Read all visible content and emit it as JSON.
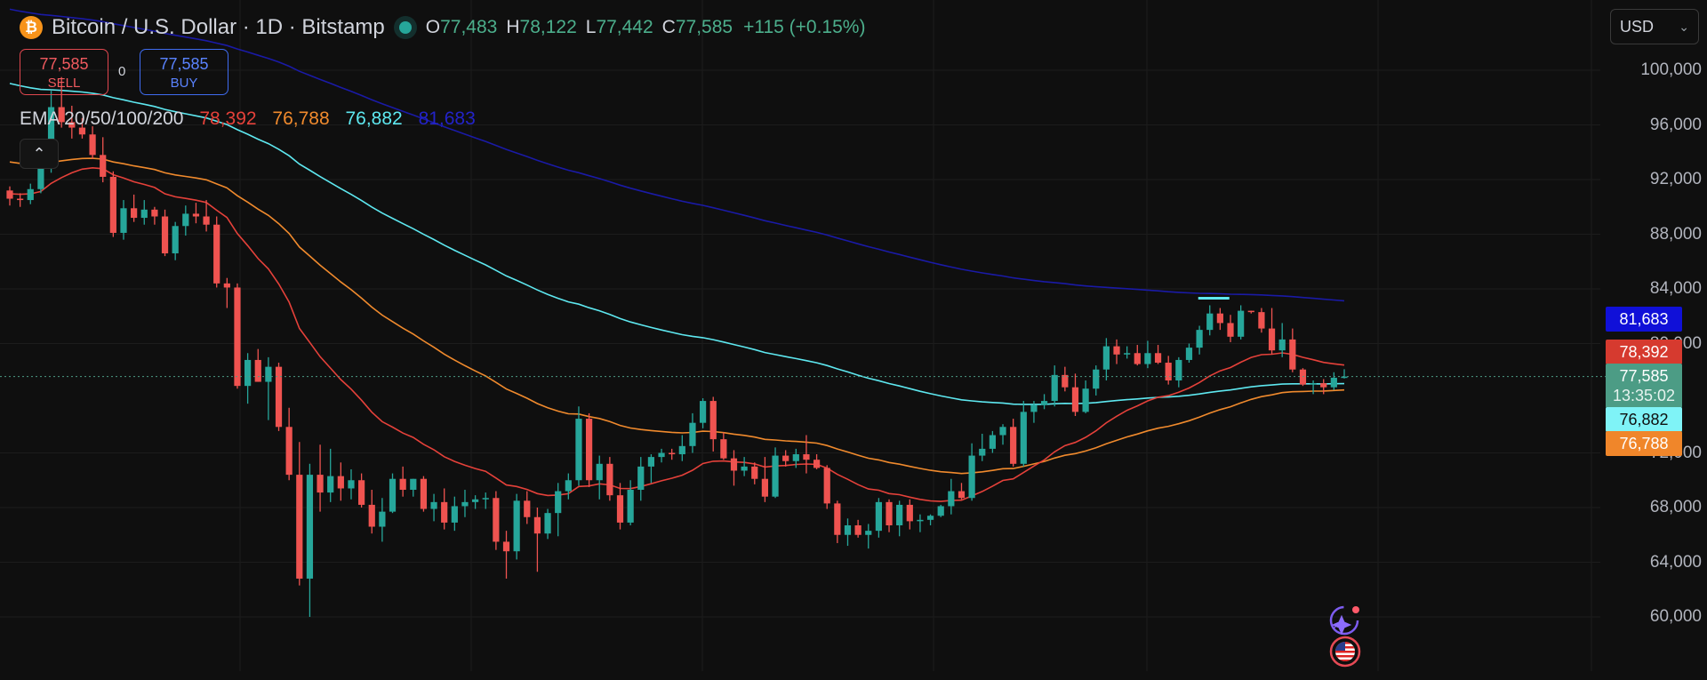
{
  "header": {
    "coin_symbol": "₿",
    "title": "Bitcoin / U.S. Dollar · 1D · Bitstamp",
    "ohlc": {
      "o_label": "O",
      "o": "77,483",
      "h_label": "H",
      "h": "78,122",
      "l_label": "L",
      "l": "77,442",
      "c_label": "C",
      "c": "77,585",
      "change": "+115 (+0.15%)"
    }
  },
  "trade": {
    "sell_price": "77,585",
    "sell_label": "SELL",
    "spread": "0",
    "buy_price": "77,585",
    "buy_label": "BUY"
  },
  "ema": {
    "label": "EMA 20/50/100/200",
    "v20": "78,392",
    "v50": "76,788",
    "v100": "76,882",
    "v200": "81,683",
    "colors": {
      "ema20": "#e5413a",
      "ema50": "#f08a2d",
      "ema100": "#5ee8f0",
      "ema200": "#1a1aa6"
    }
  },
  "currency_selector": {
    "value": "USD"
  },
  "price_scale": {
    "labels": [
      "100,000",
      "96,000",
      "92,000",
      "88,000",
      "84,000",
      "80,000",
      "72,000",
      "68,000",
      "64,000",
      "60,000"
    ],
    "tags": {
      "ema200": "81,683",
      "ema20": "78,392",
      "current": "77,585",
      "countdown": "13:35:02",
      "ema100": "76,882",
      "ema50": "76,788"
    }
  },
  "icons": {
    "collapse": "chevron-up-icon",
    "ai": "sparkle-icon",
    "flag": "us-flag-icon",
    "currency": "chevron-down-icon"
  },
  "colors": {
    "up": "#26a69a",
    "down": "#ef5350",
    "background": "#0f0f0f",
    "current_tag": "#4c9c85"
  },
  "chart_data": {
    "type": "candlestick",
    "title": "Bitcoin / U.S. Dollar · 1D · Bitstamp",
    "xlabel": "",
    "ylabel": "",
    "ylim": [
      57000,
      102000
    ],
    "candles": [
      [
        91200,
        91500,
        90100,
        90600
      ],
      [
        90600,
        91000,
        90000,
        90500
      ],
      [
        90500,
        91700,
        90200,
        91300
      ],
      [
        91300,
        93000,
        91000,
        92800
      ],
      [
        92800,
        98500,
        92500,
        97300
      ],
      [
        97300,
        99500,
        95800,
        96200
      ],
      [
        96200,
        97400,
        95000,
        95800
      ],
      [
        95800,
        96500,
        95000,
        95300
      ],
      [
        95300,
        95900,
        93500,
        93800
      ],
      [
        93800,
        95100,
        91800,
        92200
      ],
      [
        92200,
        92600,
        87800,
        88100
      ],
      [
        88100,
        90500,
        87600,
        89900
      ],
      [
        89900,
        90900,
        88900,
        89200
      ],
      [
        89200,
        90500,
        88700,
        89800
      ],
      [
        89800,
        90000,
        88700,
        89300
      ],
      [
        89300,
        89800,
        86400,
        86600
      ],
      [
        86600,
        88900,
        86100,
        88600
      ],
      [
        88600,
        90100,
        87900,
        89500
      ],
      [
        89500,
        90300,
        88800,
        89300
      ],
      [
        89300,
        90500,
        88200,
        88700
      ],
      [
        88700,
        89300,
        84100,
        84400
      ],
      [
        84400,
        84800,
        82600,
        84100
      ],
      [
        84100,
        84400,
        76700,
        76900
      ],
      [
        76900,
        79300,
        75600,
        78800
      ],
      [
        78800,
        79600,
        77200,
        77200
      ],
      [
        77200,
        79000,
        74400,
        78300
      ],
      [
        78300,
        78600,
        73600,
        73900
      ],
      [
        73900,
        75300,
        70000,
        70400
      ],
      [
        70400,
        72800,
        62300,
        62800
      ],
      [
        62800,
        71200,
        60000,
        70400
      ],
      [
        70400,
        72600,
        67700,
        69100
      ],
      [
        69100,
        72300,
        68400,
        70300
      ],
      [
        70300,
        71300,
        68500,
        69400
      ],
      [
        69400,
        70800,
        68600,
        70000
      ],
      [
        70000,
        70500,
        68000,
        68200
      ],
      [
        68200,
        69300,
        66100,
        66600
      ],
      [
        66600,
        68700,
        65500,
        67700
      ],
      [
        67700,
        70500,
        67600,
        70100
      ],
      [
        70100,
        71000,
        68800,
        69300
      ],
      [
        69300,
        70100,
        68800,
        70100
      ],
      [
        70100,
        70300,
        67700,
        67900
      ],
      [
        67900,
        69000,
        67000,
        68400
      ],
      [
        68400,
        69400,
        66400,
        66900
      ],
      [
        66900,
        68800,
        66300,
        68100
      ],
      [
        68100,
        69300,
        67300,
        68400
      ],
      [
        68400,
        68900,
        67900,
        68600
      ],
      [
        68600,
        69100,
        67900,
        68700
      ],
      [
        68700,
        69200,
        64900,
        65500
      ],
      [
        65500,
        66300,
        62800,
        64800
      ],
      [
        64800,
        69000,
        64200,
        68500
      ],
      [
        68500,
        69200,
        66800,
        67300
      ],
      [
        67300,
        68000,
        63300,
        66100
      ],
      [
        66100,
        67900,
        65700,
        67600
      ],
      [
        67600,
        69800,
        65900,
        69200
      ],
      [
        69200,
        70500,
        68600,
        70000
      ],
      [
        70000,
        75400,
        69600,
        74500
      ],
      [
        74500,
        74900,
        69500,
        70000
      ],
      [
        70000,
        71800,
        68600,
        71200
      ],
      [
        71200,
        71700,
        68500,
        68900
      ],
      [
        68900,
        69800,
        66400,
        66900
      ],
      [
        66900,
        70000,
        66700,
        69300
      ],
      [
        69300,
        71700,
        68500,
        71000
      ],
      [
        71000,
        71900,
        69800,
        71700
      ],
      [
        71700,
        72300,
        71300,
        72000
      ],
      [
        72000,
        72300,
        71500,
        71900
      ],
      [
        71900,
        73300,
        71400,
        72500
      ],
      [
        72500,
        74900,
        72000,
        74200
      ],
      [
        74200,
        76000,
        73800,
        75800
      ],
      [
        75800,
        76100,
        72100,
        73000
      ],
      [
        73000,
        73500,
        71500,
        71600
      ],
      [
        71600,
        72200,
        69600,
        70700
      ],
      [
        70700,
        71700,
        70300,
        71000
      ],
      [
        71000,
        71300,
        69700,
        70100
      ],
      [
        70100,
        71700,
        68400,
        68800
      ],
      [
        68800,
        72400,
        68700,
        71800
      ],
      [
        71800,
        72200,
        71000,
        71400
      ],
      [
        71400,
        72300,
        70900,
        71900
      ],
      [
        71900,
        73300,
        70500,
        71500
      ],
      [
        71500,
        71900,
        70800,
        70900
      ],
      [
        70900,
        71100,
        67900,
        68300
      ],
      [
        68300,
        68500,
        65400,
        66000
      ],
      [
        66000,
        67200,
        65200,
        66700
      ],
      [
        66700,
        67100,
        65800,
        66000
      ],
      [
        66000,
        66800,
        65000,
        66300
      ],
      [
        66300,
        68700,
        65800,
        68400
      ],
      [
        68400,
        68600,
        66200,
        66700
      ],
      [
        66700,
        68500,
        65900,
        68200
      ],
      [
        68200,
        68600,
        66400,
        67000
      ],
      [
        67000,
        67500,
        66200,
        67100
      ],
      [
        67100,
        67500,
        66700,
        67400
      ],
      [
        67400,
        68200,
        67300,
        68100
      ],
      [
        68100,
        70100,
        67500,
        69200
      ],
      [
        69200,
        69800,
        68600,
        68700
      ],
      [
        68700,
        72700,
        68500,
        71800
      ],
      [
        71800,
        73400,
        71400,
        72300
      ],
      [
        72300,
        73600,
        72000,
        73300
      ],
      [
        73300,
        74100,
        72600,
        73900
      ],
      [
        73900,
        74500,
        71000,
        71200
      ],
      [
        71200,
        75800,
        71000,
        75000
      ],
      [
        75000,
        75800,
        74200,
        75500
      ],
      [
        75500,
        76300,
        75200,
        75800
      ],
      [
        75800,
        78400,
        75400,
        77700
      ],
      [
        77700,
        78300,
        76500,
        76800
      ],
      [
        76800,
        77800,
        74700,
        75000
      ],
      [
        75000,
        77300,
        74900,
        76700
      ],
      [
        76700,
        78400,
        76200,
        78100
      ],
      [
        78100,
        80400,
        77300,
        79800
      ],
      [
        79800,
        80300,
        78500,
        79200
      ],
      [
        79200,
        79800,
        78900,
        79300
      ],
      [
        79300,
        79900,
        78400,
        78500
      ],
      [
        78500,
        80200,
        78200,
        79300
      ],
      [
        79300,
        79900,
        78500,
        78600
      ],
      [
        78600,
        79100,
        77000,
        77300
      ],
      [
        77300,
        79000,
        76800,
        78800
      ],
      [
        78800,
        80000,
        78600,
        79700
      ],
      [
        79700,
        81300,
        79200,
        81000
      ],
      [
        81000,
        82800,
        80600,
        82200
      ],
      [
        82200,
        82600,
        81000,
        81500
      ],
      [
        81500,
        82100,
        80100,
        80500
      ],
      [
        80500,
        82800,
        80300,
        82400
      ],
      [
        82400,
        82400,
        82200,
        82300
      ],
      [
        82300,
        82600,
        80800,
        81100
      ],
      [
        81100,
        82600,
        79200,
        79500
      ],
      [
        79500,
        81500,
        79000,
        80300
      ],
      [
        80300,
        81100,
        77900,
        78100
      ],
      [
        78100,
        78200,
        76900,
        77000
      ],
      [
        77000,
        77300,
        76300,
        77100
      ],
      [
        77100,
        77400,
        76300,
        76800
      ],
      [
        76800,
        77900,
        76600,
        77500
      ],
      [
        77483,
        78122,
        77442,
        77585
      ]
    ],
    "ema": {
      "ema20_last": 78392,
      "ema50_last": 76788,
      "ema100_last": 76882,
      "ema200_last": 81683
    }
  }
}
